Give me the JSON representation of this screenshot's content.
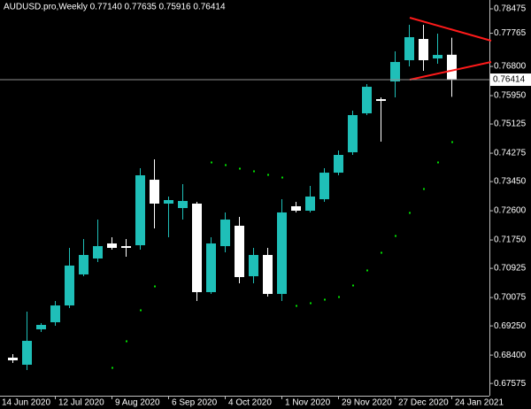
{
  "chart_data": {
    "type": "candlestick",
    "title": "AUDUSD.pro,Weekly  0.77140 0.77635 0.75916 0.76414",
    "x": [
      "14 Jun 2020",
      null,
      null,
      null,
      "12 Jul 2020",
      null,
      null,
      null,
      "9 Aug 2020",
      null,
      null,
      null,
      "6 Sep 2020",
      null,
      null,
      null,
      "4 Oct 2020",
      null,
      null,
      null,
      "1 Nov 2020",
      null,
      null,
      null,
      "29 Nov 2020",
      null,
      null,
      null,
      "27 Dec 2020",
      null,
      null,
      null,
      "24 Jan 2021"
    ],
    "open": [
      null,
      0.68326,
      0.6812,
      0.6915,
      0.69356,
      0.69845,
      0.70747,
      0.71211,
      0.71649,
      0.71571,
      0.71597,
      0.73503,
      0.72808,
      0.72679,
      0.72808,
      0.70232,
      0.71571,
      0.72164,
      0.70695,
      0.71314,
      0.7018,
      0.72731,
      0.72602,
      0.72936,
      0.73709,
      0.74302,
      0.75435,
      0.75848,
      0.76363,
      0.76981,
      0.77599,
      0.77032,
      0.7714
    ],
    "high": [
      null,
      0.68429,
      0.69665,
      0.6933,
      0.69974,
      0.7152,
      0.71777,
      0.72344,
      0.71829,
      0.71777,
      0.73838,
      0.74097,
      0.73014,
      0.73374,
      0.72859,
      0.71829,
      0.72551,
      0.72422,
      0.7152,
      0.7152,
      0.72936,
      0.72859,
      0.73323,
      0.73838,
      0.74353,
      0.75513,
      0.76285,
      0.75899,
      0.77239,
      0.78011,
      0.78011,
      0.77754,
      0.77635
    ],
    "low": [
      null,
      0.68171,
      0.67965,
      0.69073,
      0.69253,
      0.69768,
      0.70695,
      0.71108,
      0.71468,
      0.71262,
      0.71468,
      0.72087,
      0.71829,
      0.72344,
      0.69974,
      0.7018,
      0.71391,
      0.70489,
      0.70489,
      0.70103,
      0.69974,
      0.72551,
      0.72551,
      0.72859,
      0.73632,
      0.74225,
      0.75384,
      0.74611,
      0.75899,
      0.76801,
      0.76672,
      0.76878,
      0.75916
    ],
    "close": [
      null,
      0.68248,
      0.68815,
      0.69279,
      0.69845,
      0.71005,
      0.71314,
      0.71571,
      0.7152,
      0.7152,
      0.73632,
      0.72808,
      0.72911,
      0.72885,
      0.70232,
      0.71649,
      0.72344,
      0.7067,
      0.71314,
      0.7018,
      0.72551,
      0.72602,
      0.73014,
      0.73709,
      0.74225,
      0.75384,
      0.76208,
      0.75796,
      0.76929,
      0.77651,
      0.76981,
      0.77135,
      0.76414
    ],
    "overlay": {
      "color": "#00e000",
      "values": [
        null,
        null,
        null,
        null,
        null,
        null,
        null,
        null,
        0.68042,
        0.68815,
        0.69717,
        0.70412,
        null,
        null,
        null,
        0.74019,
        0.73942,
        0.73838,
        0.73761,
        0.73658,
        0.7358,
        0.69845,
        0.69923,
        0.70026,
        0.70103,
        0.70438,
        0.70876,
        0.71391,
        0.7188,
        0.72551,
        0.73246,
        0.74019,
        0.74611
      ]
    },
    "up_color": "#1fbfb8",
    "down_color": "#ffffff",
    "last_price": 0.76414,
    "ylim": [
      0.67218,
      0.78733
    ],
    "yticks": [
      0.78475,
      0.77765,
      {
        "value": 0.768,
        "label": "0.76800"
      },
      {
        "value": 0.7595,
        "label": "0.75950"
      },
      0.75125,
      0.74275,
      {
        "value": 0.7345,
        "label": "0.73450"
      },
      {
        "value": 0.726,
        "label": "0.72600"
      },
      {
        "value": 0.7175,
        "label": "0.71750"
      },
      0.70925,
      0.70075,
      {
        "value": 0.6925,
        "label": "0.69250"
      },
      {
        "value": 0.684,
        "label": "0.68400"
      },
      0.67575
    ]
  }
}
